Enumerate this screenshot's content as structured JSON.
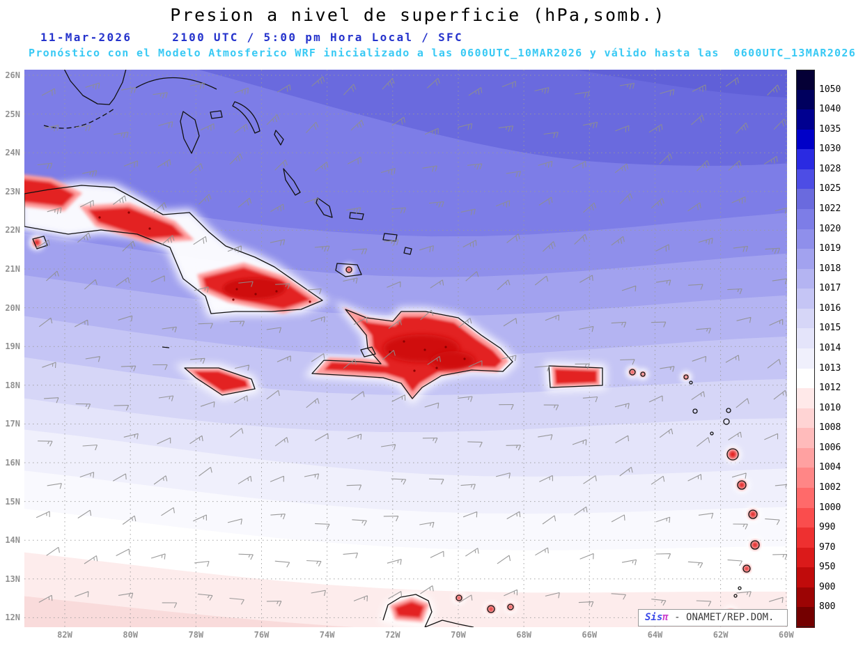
{
  "header": {
    "title": "Presion a nivel de superficie (hPa,somb.)",
    "date": "11-Mar-2026",
    "valid_time": "2100 UTC / 5:00 pm Hora Local / SFC",
    "model_line": "Pronóstico con el Modelo Atmosferico WRF inicializado a las 0600UTC_10MAR2026 y válido hasta las  0600UTC_13MAR2026",
    "title_color": "#000000",
    "date_color": "#2533cc",
    "model_line_color": "#38c9f4"
  },
  "attribution": {
    "logo_sis": "Sis",
    "logo_pi": "π",
    "text": " - ONAMET/REP.DOM."
  },
  "chart_data": {
    "type": "heatmap",
    "title": "Presion a nivel de superficie (hPa,somb.)",
    "variable": "Presion a nivel de superficie",
    "units": "hPa",
    "model": "WRF",
    "init": "0600UTC_10MAR2026",
    "valid": "11-Mar-2026 2100 UTC / 5:00 pm Hora Local / SFC",
    "valid_until": "0600UTC_13MAR2026",
    "region": "Caribbean: Cuba, Hispaniola, Jamaica, Puerto Rico, Bahamas, Lesser Antilles",
    "y_ticks": [
      "26N",
      "25N",
      "24N",
      "23N",
      "22N",
      "21N",
      "20N",
      "19N",
      "18N",
      "17N",
      "16N",
      "15N",
      "14N",
      "13N",
      "12N"
    ],
    "x_ticks": [
      "82W",
      "80W",
      "78W",
      "76W",
      "74W",
      "72W",
      "70W",
      "68W",
      "66W",
      "64W",
      "62W",
      "60W"
    ],
    "colorbar_levels": [
      1050,
      1040,
      1035,
      1030,
      1028,
      1025,
      1022,
      1020,
      1019,
      1018,
      1017,
      1016,
      1015,
      1014,
      1013,
      1012,
      1010,
      1008,
      1006,
      1004,
      1002,
      1000,
      990,
      970,
      950,
      900,
      800
    ],
    "colorbar_colors": [
      "#050036",
      "#00005e",
      "#000090",
      "#0000c8",
      "#2a2ae2",
      "#4d4de5",
      "#6a6ade",
      "#7d7de7",
      "#8f8feb",
      "#a2a2ef",
      "#b4b4f2",
      "#c5c5f5",
      "#d6d6f7",
      "#e4e4fa",
      "#f0f0fc",
      "#ffffff",
      "#ffe9e9",
      "#ffd4d4",
      "#ffbbbb",
      "#ffa1a1",
      "#ff8686",
      "#ff6a6a",
      "#fa4d4d",
      "#ee3030",
      "#db1a1a",
      "#c00b0b",
      "#9c0404",
      "#740000"
    ],
    "pressure_field_summary": [
      {
        "region": "north Atlantic portion 24N-26N",
        "slp_hPa": "1020-1025"
      },
      {
        "region": "central 20N-23N",
        "slp_hPa": "1016-1019"
      },
      {
        "region": "Greater Antilles latitudes 17N-20N",
        "slp_hPa": "1014-1016"
      },
      {
        "region": "south 12N-16N",
        "slp_hPa": "1012-1014"
      },
      {
        "region": "mountainous island interiors (Cuba, Hispaniola, Jamaica, Puerto Rico, Lesser Antilles)",
        "slp_hPa": "800-1000 terrain-reduced, shaded red"
      }
    ],
    "wind_barbs": {
      "color": "#8f8f8f",
      "direction_from": "ENE trade winds",
      "typical_speed_kt": "10-20"
    },
    "grid": "1-degree dotted graticule"
  }
}
